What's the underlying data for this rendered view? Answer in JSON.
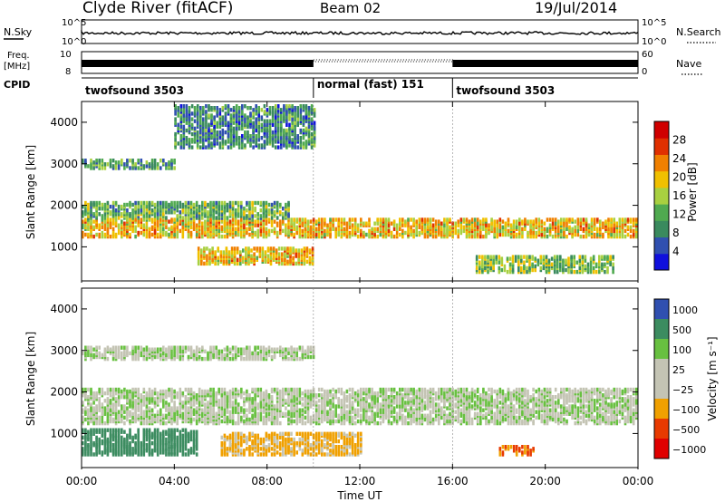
{
  "header": {
    "station": "Clyde River (fitACF)",
    "beam": "Beam 02",
    "date": "19/Jul/2014"
  },
  "top_panel": {
    "left_label": "N.Sky",
    "right_label": "N.Search",
    "left_ticks": [
      "10^5",
      "10^0"
    ],
    "right_ticks": [
      "10^5",
      "10^0"
    ]
  },
  "freq_panel": {
    "left_label_1": "Freq.",
    "left_label_2": "[MHz]",
    "left_ticks": [
      "10",
      "8"
    ],
    "right_label": "Nave",
    "right_ticks": [
      "60",
      "0"
    ]
  },
  "cpid_panel": {
    "label": "CPID",
    "segments": [
      {
        "name": "twofsound 3503",
        "start": 0,
        "end": 10
      },
      {
        "name": "normal (fast) 151",
        "start": 10,
        "end": 16
      },
      {
        "name": "twofsound 3503",
        "start": 16,
        "end": 24
      }
    ]
  },
  "colors": {
    "power_scale": [
      "#1010dd",
      "#3050b0",
      "#3a8a5e",
      "#50aa50",
      "#a8d040",
      "#f0c000",
      "#f08000",
      "#e03000",
      "#d00000"
    ],
    "velocity_scale": [
      "#e00000",
      "#e83a00",
      "#f0a000",
      "#c4c4b4",
      "#c4c4b4",
      "#68c040",
      "#3c8c60",
      "#3050b0"
    ]
  },
  "chart_data": [
    {
      "type": "heatmap",
      "name": "power",
      "title": "",
      "xlabel": "Time UT",
      "ylabel": "Slant Range [km]",
      "xlim": [
        0,
        24
      ],
      "ylim": [
        180,
        4500
      ],
      "x_ticks": [
        "00:00",
        "04:00",
        "08:00",
        "12:00",
        "16:00",
        "20:00",
        "00:00"
      ],
      "y_ticks": [
        1000,
        2000,
        3000,
        4000
      ],
      "colorbar": {
        "label": "Power [dB]",
        "range": [
          0,
          32
        ],
        "ticks": [
          4,
          8,
          12,
          16,
          20,
          24,
          28
        ]
      },
      "bands": [
        {
          "range_km": [
            1250,
            1700
          ],
          "hours": [
            0,
            24
          ],
          "level": 20
        },
        {
          "range_km": [
            1700,
            2100
          ],
          "hours": [
            0,
            9
          ],
          "level": 12
        },
        {
          "range_km": [
            600,
            1000
          ],
          "hours": [
            5,
            10
          ],
          "level": 20
        },
        {
          "range_km": [
            2900,
            3100
          ],
          "hours": [
            0,
            4
          ],
          "level": 10
        },
        {
          "range_km": [
            3400,
            4400
          ],
          "hours": [
            4,
            10
          ],
          "level": 8
        },
        {
          "range_km": [
            400,
            800
          ],
          "hours": [
            17,
            23
          ],
          "level": 14
        }
      ]
    },
    {
      "type": "heatmap",
      "name": "velocity",
      "title": "",
      "xlabel": "Time UT",
      "ylabel": "Slant Range [km]",
      "xlim": [
        0,
        24
      ],
      "ylim": [
        180,
        4500
      ],
      "x_ticks": [
        "00:00",
        "04:00",
        "08:00",
        "12:00",
        "16:00",
        "20:00",
        "00:00"
      ],
      "y_ticks": [
        1000,
        2000,
        3000,
        4000
      ],
      "colorbar": {
        "label": "Velocity [m s⁻¹]",
        "tick_labels": [
          "1000",
          "500",
          "100",
          "25",
          "−25",
          "−100",
          "−500",
          "−1000"
        ]
      },
      "bands": [
        {
          "range_km": [
            1250,
            2100
          ],
          "hours": [
            0,
            24
          ],
          "velocity": 0
        },
        {
          "range_km": [
            500,
            1000
          ],
          "hours": [
            6,
            12
          ],
          "velocity": -150
        },
        {
          "range_km": [
            500,
            1100
          ],
          "hours": [
            0,
            5
          ],
          "velocity": 300
        },
        {
          "range_km": [
            500,
            700
          ],
          "hours": [
            18,
            19.5
          ],
          "velocity": -500
        },
        {
          "range_km": [
            2800,
            3100
          ],
          "hours": [
            0,
            10
          ],
          "velocity": 0
        }
      ]
    }
  ]
}
